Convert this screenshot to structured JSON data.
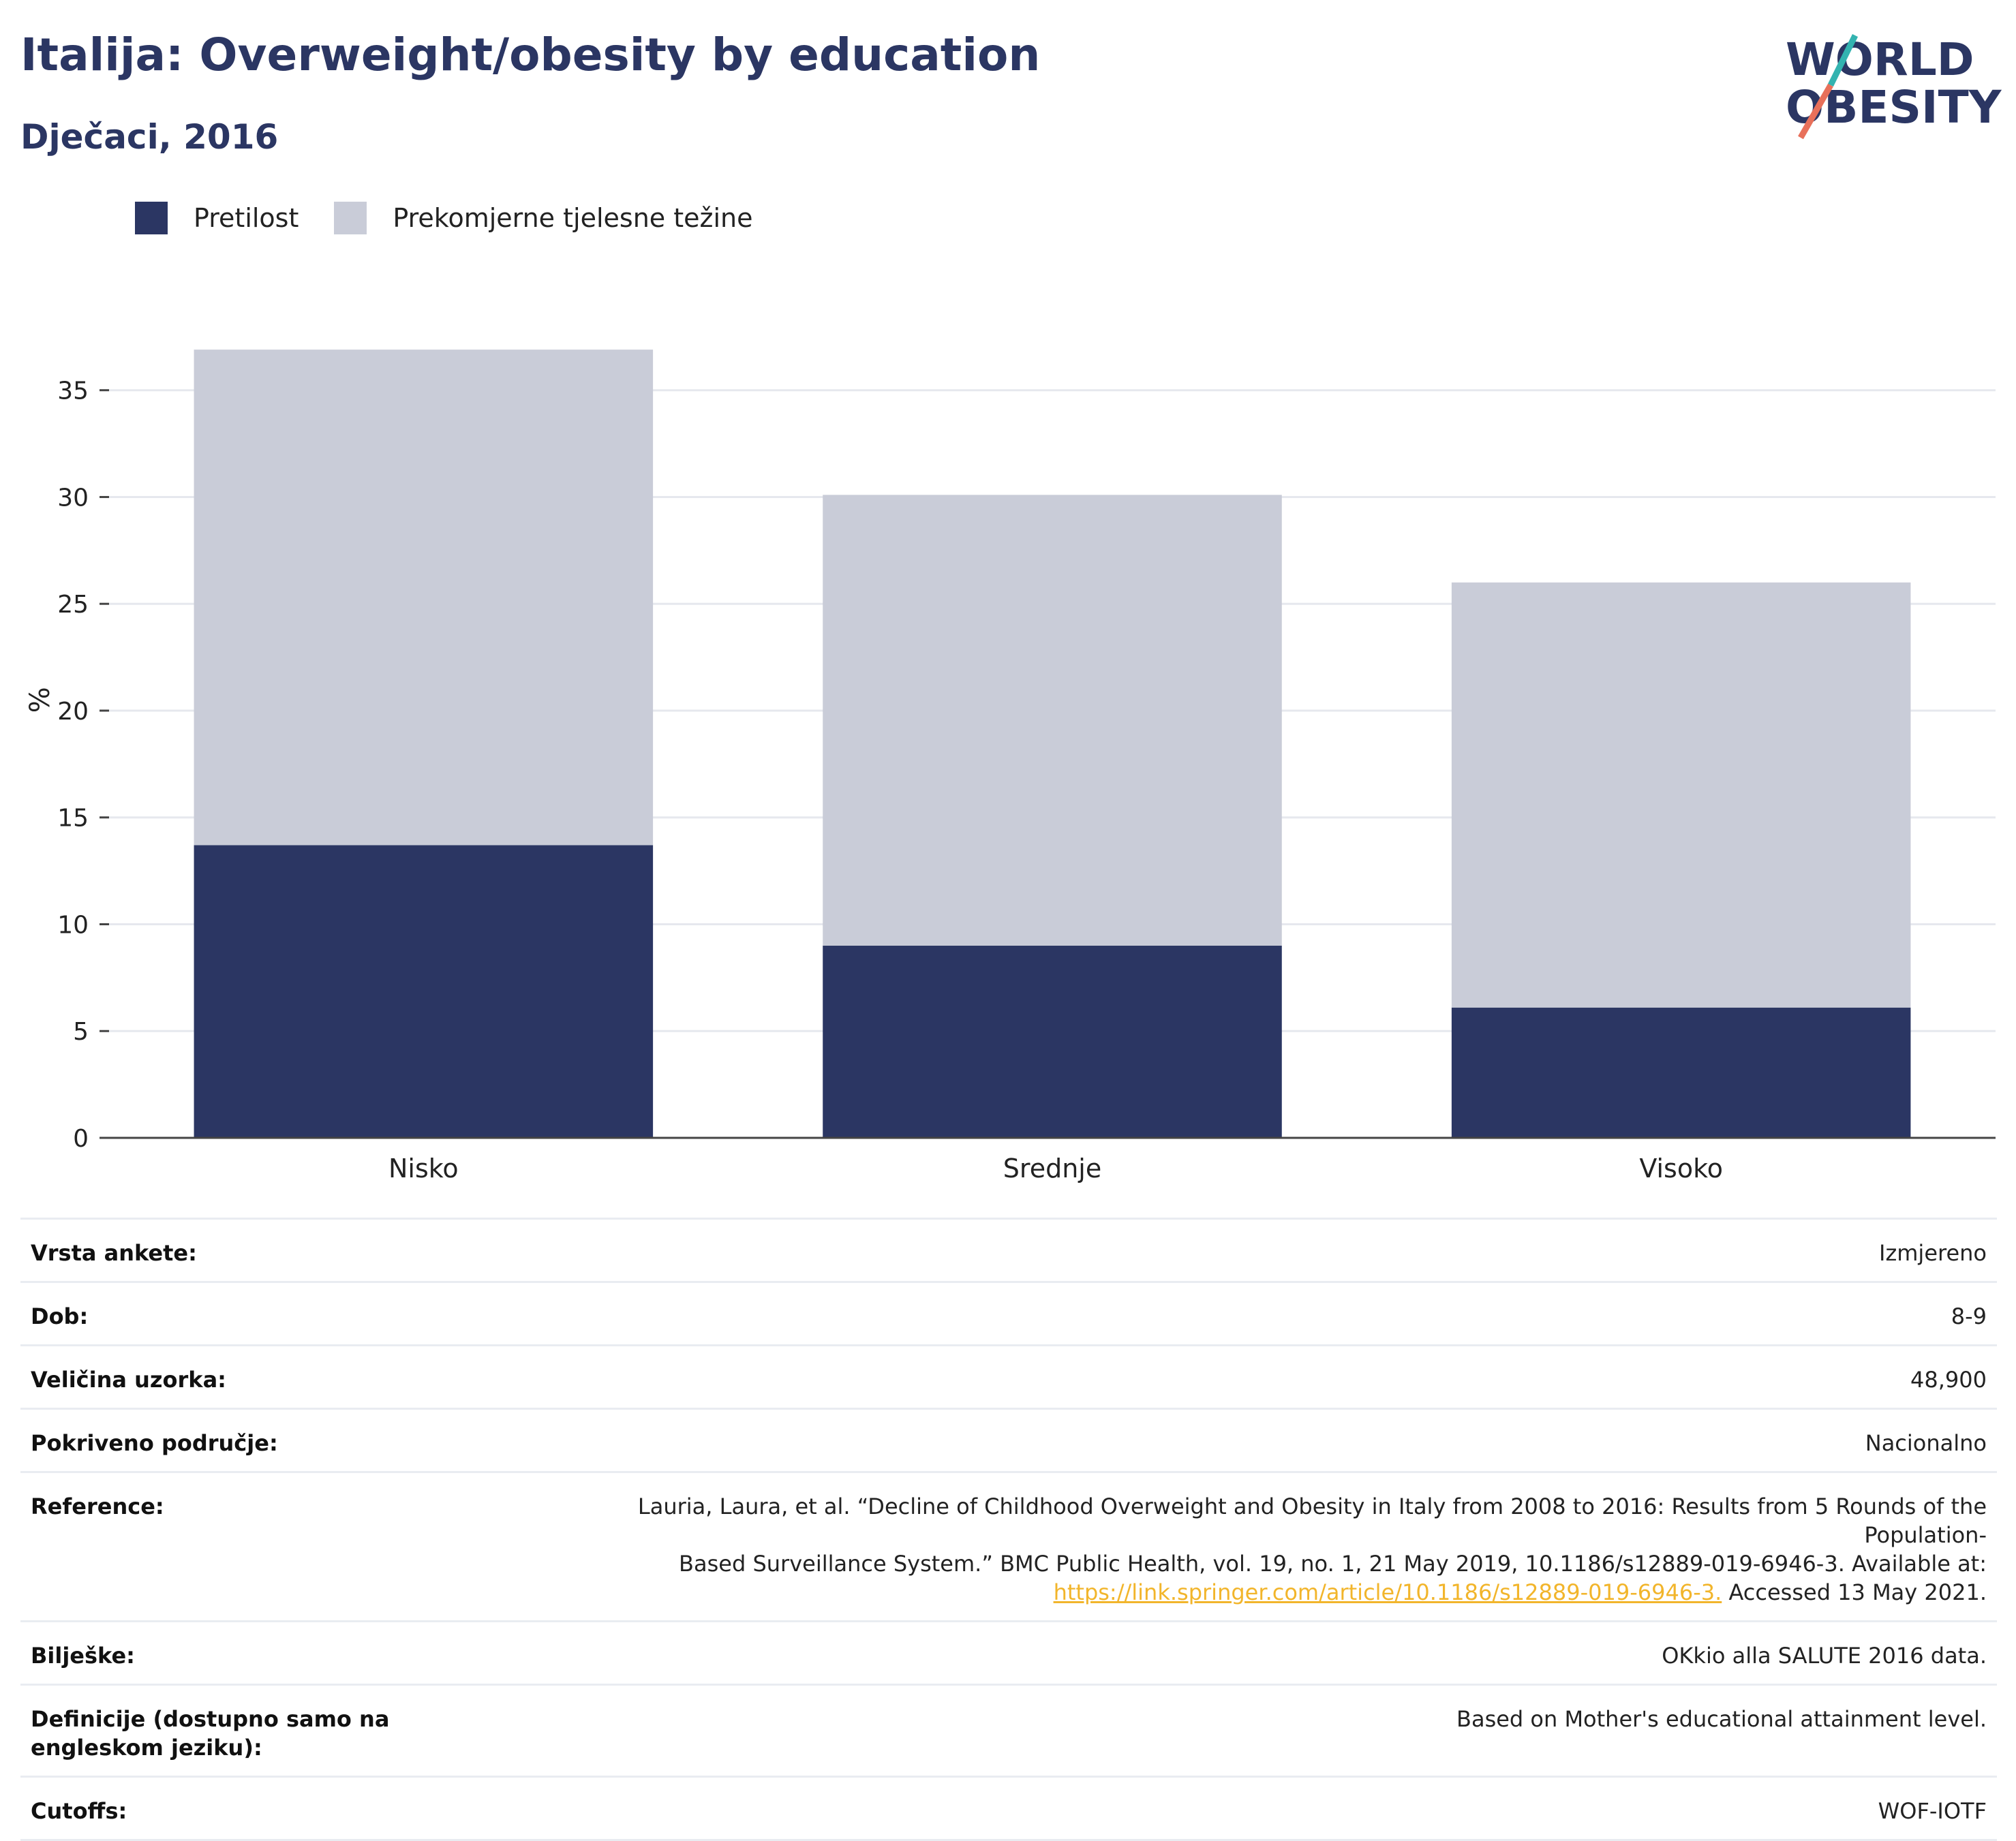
{
  "header": {
    "title": "Italija: Overweight/obesity by education",
    "subtitle": "Dječaci, 2016"
  },
  "logo": {
    "line1": "WORLD",
    "line2": "OBESITY",
    "colors": {
      "text": "#2b3663",
      "slash_top": "#33b3b0",
      "slash_bottom": "#e8705a"
    }
  },
  "colors": {
    "pretilost": "#2b3663",
    "prekomjerne": "#c9ccd8",
    "grid": "#e6e8ee",
    "axis": "#444444",
    "link": "#f2b52b"
  },
  "chart_data": {
    "type": "bar",
    "stacked": true,
    "categories": [
      "Nisko",
      "Srednje",
      "Visoko"
    ],
    "series": [
      {
        "name": "Pretilost",
        "values": [
          13.7,
          9.0,
          6.1
        ]
      },
      {
        "name": "Prekomjerne tjelesne težine",
        "values": [
          23.2,
          21.1,
          19.9
        ]
      }
    ],
    "ylabel": "%",
    "ylim": [
      0,
      37
    ],
    "yticks": [
      0,
      5,
      10,
      15,
      20,
      25,
      30,
      35
    ],
    "grid": true,
    "legend_position": "top-left"
  },
  "info": [
    {
      "label": "Vrsta ankete:",
      "value": "Izmjereno"
    },
    {
      "label": "Dob:",
      "value": "8-9"
    },
    {
      "label": "Veličina uzorka:",
      "value": "48,900"
    },
    {
      "label": "Pokriveno područje:",
      "value": "Nacionalno"
    },
    {
      "label": "Reference:",
      "value_line1": "Lauria, Laura, et al. “Decline of Childhood Overweight and Obesity in Italy from 2008 to 2016: Results from 5 Rounds of the Population-",
      "value_line2": "Based Surveillance System.” BMC Public Health, vol. 19, no. 1, 21 May 2019, 10.1186/s12889-019-6946-3. Available at:",
      "link": "https://link.springer.com/article/10.1186/s12889-019-6946-3.",
      "value_tail": " Accessed 13 May 2021."
    },
    {
      "label": "Bilješke:",
      "value": "OKkio alla SALUTE 2016 data."
    },
    {
      "label": "Definicije (dostupno samo na engleskom jeziku):",
      "value": "Based on Mother's educational attainment level."
    },
    {
      "label": "Cutoffs:",
      "value": "WOF-IOTF"
    }
  ]
}
